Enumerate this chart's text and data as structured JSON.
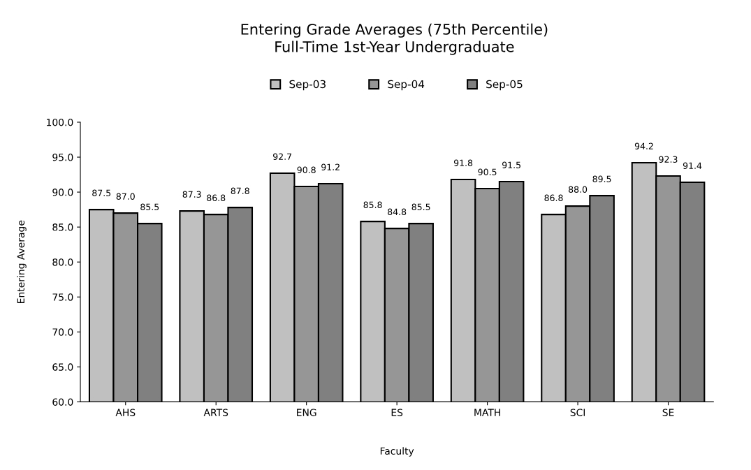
{
  "chart_data": {
    "type": "bar",
    "title": "Entering Grade Averages (75th Percentile)\nFull-Time 1st-Year Undergraduate",
    "xlabel": "Faculty",
    "ylabel": "Entering Average",
    "categories": [
      "AHS",
      "ARTS",
      "ENG",
      "ES",
      "MATH",
      "SCI",
      "SE"
    ],
    "series": [
      {
        "name": "Sep-03",
        "color": "#c0c0c0",
        "values": [
          87.5,
          87.3,
          92.7,
          85.8,
          91.8,
          86.8,
          94.2
        ],
        "value_labels": [
          "87.5",
          "87.3",
          "92.7",
          "85.8",
          "91.8",
          "86.8",
          "94.2"
        ]
      },
      {
        "name": "Sep-04",
        "color": "#969696",
        "values": [
          87.0,
          86.8,
          90.8,
          84.8,
          90.5,
          88.0,
          92.3
        ],
        "value_labels": [
          "87.0",
          "86.8",
          "90.8",
          "84.8",
          "90.5",
          "88.0",
          "92.3"
        ]
      },
      {
        "name": "Sep-05",
        "color": "#808080",
        "values": [
          85.5,
          87.8,
          91.2,
          85.5,
          91.5,
          89.5,
          91.4
        ],
        "value_labels": [
          "85.5",
          "87.8",
          "91.2",
          "85.5",
          "91.5",
          "89.5",
          "91.4"
        ]
      }
    ],
    "ylim": [
      60,
      100
    ],
    "yticks": [
      {
        "value": 60,
        "label": "60.0"
      },
      {
        "value": 65,
        "label": "65.0"
      },
      {
        "value": 70,
        "label": "70.0"
      },
      {
        "value": 75,
        "label": "75.0"
      },
      {
        "value": 80,
        "label": "80.0"
      },
      {
        "value": 85,
        "label": "85.0"
      },
      {
        "value": 90,
        "label": "90.0"
      },
      {
        "value": 95,
        "label": "95.0"
      },
      {
        "value": 100,
        "label": "100.0"
      }
    ],
    "legend": "top",
    "grid": false
  }
}
